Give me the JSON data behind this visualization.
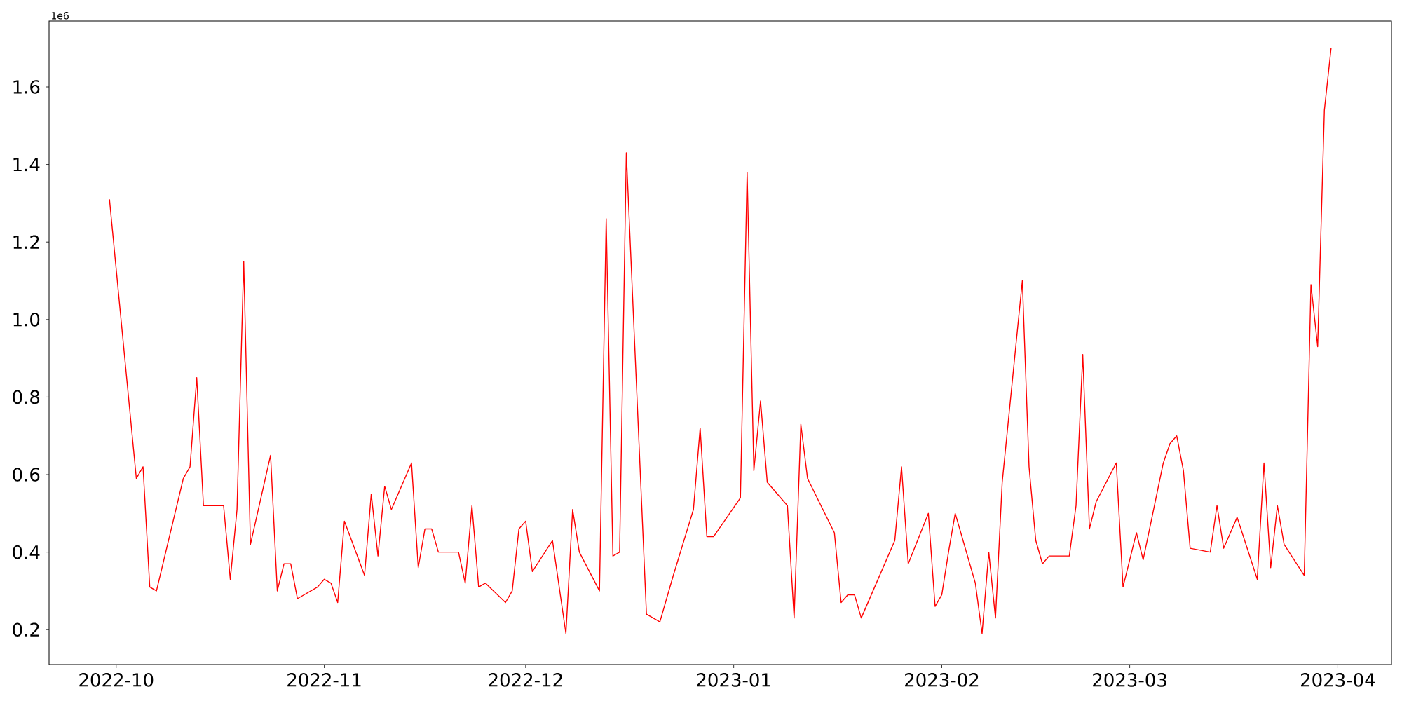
{
  "chart_data": {
    "type": "line",
    "color": "#ff0000",
    "x": [
      "2022-09-30",
      "2022-10-04",
      "2022-10-05",
      "2022-10-06",
      "2022-10-07",
      "2022-10-11",
      "2022-10-12",
      "2022-10-13",
      "2022-10-14",
      "2022-10-17",
      "2022-10-18",
      "2022-10-19",
      "2022-10-20",
      "2022-10-21",
      "2022-10-24",
      "2022-10-25",
      "2022-10-26",
      "2022-10-27",
      "2022-10-28",
      "2022-10-31",
      "2022-11-01",
      "2022-11-02",
      "2022-11-03",
      "2022-11-04",
      "2022-11-07",
      "2022-11-08",
      "2022-11-09",
      "2022-11-10",
      "2022-11-11",
      "2022-11-14",
      "2022-11-15",
      "2022-11-16",
      "2022-11-17",
      "2022-11-18",
      "2022-11-21",
      "2022-11-22",
      "2022-11-23",
      "2022-11-24",
      "2022-11-25",
      "2022-11-28",
      "2022-11-29",
      "2022-11-30",
      "2022-12-01",
      "2022-12-02",
      "2022-12-05",
      "2022-12-07",
      "2022-12-08",
      "2022-12-09",
      "2022-12-12",
      "2022-12-13",
      "2022-12-14",
      "2022-12-15",
      "2022-12-16",
      "2022-12-19",
      "2022-12-20",
      "2022-12-21",
      "2022-12-22",
      "2022-12-23",
      "2022-12-26",
      "2022-12-27",
      "2022-12-28",
      "2022-12-29",
      "2023-01-02",
      "2023-01-03",
      "2023-01-04",
      "2023-01-05",
      "2023-01-06",
      "2023-01-09",
      "2023-01-10",
      "2023-01-11",
      "2023-01-12",
      "2023-01-16",
      "2023-01-17",
      "2023-01-18",
      "2023-01-19",
      "2023-01-20",
      "2023-01-25",
      "2023-01-26",
      "2023-01-27",
      "2023-01-30",
      "2023-01-31",
      "2023-02-01",
      "2023-02-02",
      "2023-02-03",
      "2023-02-06",
      "2023-02-07",
      "2023-02-08",
      "2023-02-09",
      "2023-02-10",
      "2023-02-13",
      "2023-02-14",
      "2023-02-15",
      "2023-02-16",
      "2023-02-17",
      "2023-02-20",
      "2023-02-21",
      "2023-02-22",
      "2023-02-23",
      "2023-02-24",
      "2023-02-27",
      "2023-02-28",
      "2023-03-02",
      "2023-03-03",
      "2023-03-06",
      "2023-03-07",
      "2023-03-08",
      "2023-03-09",
      "2023-03-10",
      "2023-03-13",
      "2023-03-14",
      "2023-03-15",
      "2023-03-17",
      "2023-03-20",
      "2023-03-21",
      "2023-03-22",
      "2023-03-23",
      "2023-03-24",
      "2023-03-27",
      "2023-03-28",
      "2023-03-29",
      "2023-03-30",
      "2023-03-31"
    ],
    "values": [
      1.31,
      0.59,
      0.62,
      0.31,
      0.3,
      0.59,
      0.62,
      0.85,
      0.52,
      0.52,
      0.33,
      0.51,
      1.15,
      0.42,
      0.65,
      0.3,
      0.37,
      0.37,
      0.28,
      0.31,
      0.33,
      0.32,
      0.27,
      0.48,
      0.34,
      0.55,
      0.39,
      0.57,
      0.51,
      0.63,
      0.36,
      0.46,
      0.46,
      0.4,
      0.4,
      0.32,
      0.52,
      0.31,
      0.32,
      0.27,
      0.3,
      0.46,
      0.48,
      0.35,
      0.43,
      0.19,
      0.51,
      0.4,
      0.3,
      1.26,
      0.39,
      0.4,
      1.43,
      0.24,
      0.23,
      0.22,
      0.28,
      0.34,
      0.51,
      0.72,
      0.44,
      0.44,
      0.54,
      1.38,
      0.61,
      0.79,
      0.58,
      0.52,
      0.23,
      0.73,
      0.59,
      0.45,
      0.27,
      0.29,
      0.29,
      0.23,
      0.43,
      0.62,
      0.37,
      0.5,
      0.26,
      0.29,
      0.4,
      0.5,
      0.32,
      0.19,
      0.4,
      0.23,
      0.58,
      1.1,
      0.62,
      0.43,
      0.37,
      0.39,
      0.39,
      0.52,
      0.91,
      0.46,
      0.53,
      0.63,
      0.31,
      0.45,
      0.38,
      0.63,
      0.68,
      0.7,
      0.61,
      0.41,
      0.4,
      0.52,
      0.41,
      0.49,
      0.33,
      0.63,
      0.36,
      0.52,
      0.42,
      0.34,
      1.09,
      0.93,
      1.54,
      1.7
    ],
    "xlim": [
      "2022-09-21",
      "2023-04-09"
    ],
    "xticks": [
      {
        "value": "2022-10-01",
        "label": "2022-10"
      },
      {
        "value": "2022-11-01",
        "label": "2022-11"
      },
      {
        "value": "2022-12-01",
        "label": "2022-12"
      },
      {
        "value": "2023-01-01",
        "label": "2023-01"
      },
      {
        "value": "2023-02-01",
        "label": "2023-02"
      },
      {
        "value": "2023-03-01",
        "label": "2023-03"
      },
      {
        "value": "2023-04-01",
        "label": "2023-04"
      }
    ],
    "ylim": [
      0.11,
      1.77
    ],
    "yticks": [
      0.2,
      0.4,
      0.6,
      0.8,
      {
        "value": 1.0,
        "label": "1.0"
      },
      1.2,
      1.4,
      1.6
    ],
    "annotations": [
      "1e6"
    ]
  }
}
